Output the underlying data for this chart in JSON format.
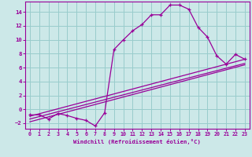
{
  "xlabel": "Windchill (Refroidissement éolien,°C)",
  "bg_color": "#cce8e8",
  "line_color": "#990099",
  "grid_color": "#99cccc",
  "xlim": [
    -0.5,
    23.5
  ],
  "ylim": [
    -2.8,
    15.5
  ],
  "xticks": [
    0,
    1,
    2,
    3,
    4,
    5,
    6,
    7,
    8,
    9,
    10,
    11,
    12,
    13,
    14,
    15,
    16,
    17,
    18,
    19,
    20,
    21,
    22,
    23
  ],
  "yticks": [
    -2,
    0,
    2,
    4,
    6,
    8,
    10,
    12,
    14
  ],
  "curve1_x": [
    0,
    1,
    2,
    3,
    4,
    5,
    6,
    7,
    8,
    9,
    10,
    11,
    12,
    13,
    14,
    15,
    16,
    17,
    18,
    19,
    20,
    21,
    22,
    23
  ],
  "curve1_y": [
    -0.8,
    -0.8,
    -1.4,
    -0.6,
    -0.9,
    -1.3,
    -1.6,
    -2.4,
    -0.5,
    8.6,
    10.0,
    11.3,
    12.2,
    13.6,
    13.6,
    15.0,
    15.0,
    14.4,
    11.8,
    10.4,
    7.7,
    6.5,
    7.9,
    7.2
  ],
  "line2_x": [
    0,
    23
  ],
  "line2_y": [
    -1.0,
    7.2
  ],
  "line3_x": [
    0,
    23
  ],
  "line3_y": [
    -1.8,
    6.4
  ],
  "line4_x": [
    0,
    23
  ],
  "line4_y": [
    -1.4,
    6.6
  ]
}
